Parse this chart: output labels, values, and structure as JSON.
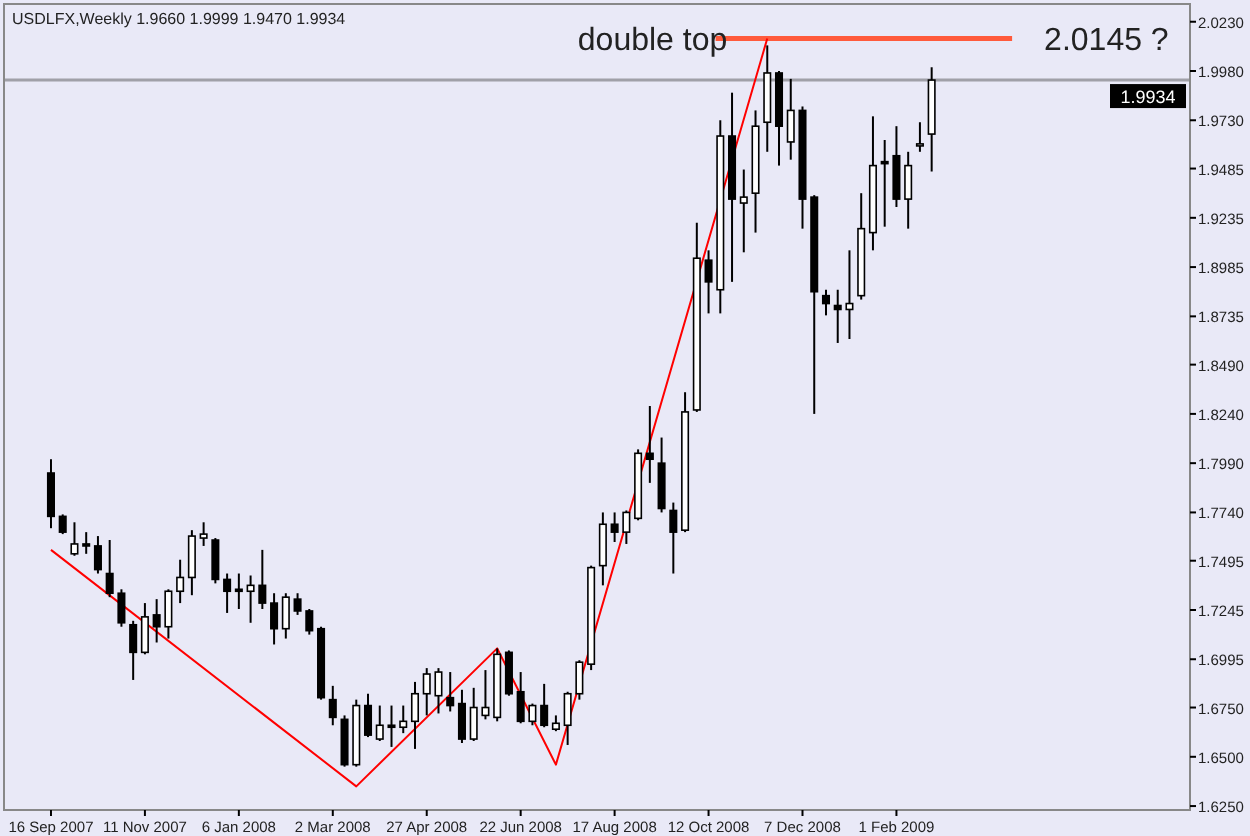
{
  "chart_data": {
    "type": "candlestick",
    "title": "USDLFX,Weekly 1.9660 1.9999 1.9470 1.9934",
    "x": [
      "2007-09-16",
      "2007-09-23",
      "2007-09-30",
      "2007-10-07",
      "2007-10-14",
      "2007-10-21",
      "2007-10-28",
      "2007-11-04",
      "2007-11-11",
      "2007-11-18",
      "2007-11-25",
      "2007-12-02",
      "2007-12-09",
      "2007-12-16",
      "2007-12-23",
      "2007-12-30",
      "2008-01-06",
      "2008-01-13",
      "2008-01-20",
      "2008-01-27",
      "2008-02-03",
      "2008-02-10",
      "2008-02-17",
      "2008-02-24",
      "2008-03-02",
      "2008-03-09",
      "2008-03-16",
      "2008-03-23",
      "2008-03-30",
      "2008-04-06",
      "2008-04-13",
      "2008-04-20",
      "2008-04-27",
      "2008-05-04",
      "2008-05-11",
      "2008-05-18",
      "2008-05-25",
      "2008-06-01",
      "2008-06-08",
      "2008-06-15",
      "2008-06-22",
      "2008-06-29",
      "2008-07-06",
      "2008-07-13",
      "2008-07-20",
      "2008-07-27",
      "2008-08-03",
      "2008-08-10",
      "2008-08-17",
      "2008-08-24",
      "2008-08-31",
      "2008-09-07",
      "2008-09-14",
      "2008-09-21",
      "2008-09-28",
      "2008-10-05",
      "2008-10-12",
      "2008-10-19",
      "2008-10-26",
      "2008-11-02",
      "2008-11-09",
      "2008-11-16",
      "2008-11-23",
      "2008-11-30",
      "2008-12-07",
      "2008-12-14",
      "2008-12-21",
      "2008-12-28",
      "2009-01-04",
      "2009-01-11",
      "2009-01-18",
      "2009-01-25",
      "2009-02-01",
      "2009-02-08",
      "2009-02-15",
      "2009-02-22"
    ],
    "ohlc": [
      [
        1.794,
        1.801,
        1.766,
        1.772
      ],
      [
        1.772,
        1.773,
        1.763,
        1.764
      ],
      [
        1.753,
        1.769,
        1.752,
        1.758
      ],
      [
        1.758,
        1.764,
        1.753,
        1.757
      ],
      [
        1.757,
        1.762,
        1.743,
        1.745
      ],
      [
        1.743,
        1.76,
        1.731,
        1.733
      ],
      [
        1.733,
        1.735,
        1.716,
        1.718
      ],
      [
        1.717,
        1.719,
        1.689,
        1.703
      ],
      [
        1.703,
        1.728,
        1.702,
        1.721
      ],
      [
        1.722,
        1.73,
        1.708,
        1.716
      ],
      [
        1.716,
        1.735,
        1.71,
        1.734
      ],
      [
        1.734,
        1.75,
        1.728,
        1.741
      ],
      [
        1.741,
        1.765,
        1.732,
        1.762
      ],
      [
        1.761,
        1.769,
        1.757,
        1.763
      ],
      [
        1.76,
        1.761,
        1.738,
        1.74
      ],
      [
        1.74,
        1.743,
        1.723,
        1.734
      ],
      [
        1.735,
        1.743,
        1.725,
        1.734
      ],
      [
        1.734,
        1.742,
        1.718,
        1.737
      ],
      [
        1.737,
        1.755,
        1.725,
        1.728
      ],
      [
        1.728,
        1.733,
        1.707,
        1.715
      ],
      [
        1.715,
        1.733,
        1.71,
        1.731
      ],
      [
        1.73,
        1.733,
        1.722,
        1.724
      ],
      [
        1.724,
        1.725,
        1.712,
        1.714
      ],
      [
        1.715,
        1.716,
        1.679,
        1.68
      ],
      [
        1.679,
        1.686,
        1.666,
        1.67
      ],
      [
        1.669,
        1.671,
        1.645,
        1.646
      ],
      [
        1.646,
        1.679,
        1.645,
        1.676
      ],
      [
        1.676,
        1.682,
        1.66,
        1.661
      ],
      [
        1.659,
        1.676,
        1.658,
        1.666
      ],
      [
        1.666,
        1.676,
        1.655,
        1.665
      ],
      [
        1.665,
        1.676,
        1.662,
        1.668
      ],
      [
        1.668,
        1.688,
        1.654,
        1.682
      ],
      [
        1.682,
        1.695,
        1.671,
        1.692
      ],
      [
        1.681,
        1.695,
        1.672,
        1.693
      ],
      [
        1.68,
        1.693,
        1.673,
        1.676
      ],
      [
        1.677,
        1.684,
        1.657,
        1.659
      ],
      [
        1.659,
        1.685,
        1.658,
        1.675
      ],
      [
        1.671,
        1.694,
        1.669,
        1.675
      ],
      [
        1.67,
        1.705,
        1.668,
        1.702
      ],
      [
        1.703,
        1.704,
        1.681,
        1.682
      ],
      [
        1.683,
        1.693,
        1.667,
        1.668
      ],
      [
        1.668,
        1.677,
        1.666,
        1.676
      ],
      [
        1.676,
        1.687,
        1.665,
        1.666
      ],
      [
        1.664,
        1.671,
        1.663,
        1.667
      ],
      [
        1.666,
        1.683,
        1.656,
        1.682
      ],
      [
        1.682,
        1.699,
        1.679,
        1.698
      ],
      [
        1.697,
        1.747,
        1.694,
        1.746
      ],
      [
        1.747,
        1.774,
        1.737,
        1.768
      ],
      [
        1.768,
        1.774,
        1.759,
        1.764
      ],
      [
        1.764,
        1.775,
        1.758,
        1.774
      ],
      [
        1.771,
        1.806,
        1.77,
        1.804
      ],
      [
        1.804,
        1.828,
        1.789,
        1.801
      ],
      [
        1.799,
        1.812,
        1.774,
        1.776
      ],
      [
        1.775,
        1.779,
        1.743,
        1.764
      ],
      [
        1.765,
        1.835,
        1.764,
        1.825
      ],
      [
        1.826,
        1.921,
        1.825,
        1.903
      ],
      [
        1.902,
        1.907,
        1.875,
        1.891
      ],
      [
        1.887,
        1.973,
        1.875,
        1.965
      ],
      [
        1.965,
        1.987,
        1.891,
        1.933
      ],
      [
        1.931,
        1.948,
        1.906,
        1.934
      ],
      [
        1.936,
        1.978,
        1.916,
        1.97
      ],
      [
        1.972,
        2.011,
        1.957,
        1.997
      ],
      [
        1.997,
        1.998,
        1.95,
        1.97
      ],
      [
        1.962,
        1.994,
        1.953,
        1.978
      ],
      [
        1.978,
        1.98,
        1.918,
        1.933
      ],
      [
        1.934,
        1.935,
        1.824,
        1.886
      ],
      [
        1.884,
        1.887,
        1.874,
        1.88
      ],
      [
        1.879,
        1.887,
        1.86,
        1.877
      ],
      [
        1.877,
        1.907,
        1.862,
        1.88
      ],
      [
        1.884,
        1.936,
        1.882,
        1.918
      ],
      [
        1.916,
        1.975,
        1.907,
        1.95
      ],
      [
        1.952,
        1.963,
        1.919,
        1.951
      ],
      [
        1.955,
        1.97,
        1.929,
        1.933
      ],
      [
        1.933,
        1.957,
        1.918,
        1.95
      ],
      [
        1.961,
        1.972,
        1.957,
        1.961
      ],
      [
        1.966,
        1.9999,
        1.947,
        1.9934
      ]
    ],
    "series": [
      {
        "type": "line",
        "color": "#ff0000",
        "x": [
          "2007-09-16",
          "2008-03-16",
          "2008-06-08",
          "2008-07-13",
          "2008-11-16"
        ],
        "values": [
          1.755,
          1.635,
          1.705,
          1.646,
          2.0145
        ]
      }
    ],
    "xlim": [
      "2007-08-19",
      "2009-07-26"
    ],
    "xticks": [
      {
        "value": "2007-09-16",
        "label": "16 Sep 2007"
      },
      {
        "value": "2007-11-11",
        "label": "11 Nov 2007"
      },
      {
        "value": "2008-01-06",
        "label": "6 Jan 2008"
      },
      {
        "value": "2008-03-02",
        "label": "2 Mar 2008"
      },
      {
        "value": "2008-04-27",
        "label": "27 Apr 2008"
      },
      {
        "value": "2008-06-22",
        "label": "22 Jun 2008"
      },
      {
        "value": "2008-08-17",
        "label": "17 Aug 2008"
      },
      {
        "value": "2008-10-12",
        "label": "12 Oct 2008"
      },
      {
        "value": "2008-12-07",
        "label": "7 Dec 2008"
      },
      {
        "value": "2009-02-01",
        "label": "1 Feb 2009"
      }
    ],
    "ylim": [
      1.623,
      2.032
    ],
    "yticks": [
      {
        "value": 2.023,
        "label": "2.0230"
      },
      {
        "value": 1.998,
        "label": "1.9980"
      },
      {
        "value": 1.973,
        "label": "1.9730"
      },
      1.9485,
      1.9235,
      1.8985,
      1.8735,
      {
        "value": 1.849,
        "label": "1.8490"
      },
      {
        "value": 1.824,
        "label": "1.8240"
      },
      {
        "value": 1.799,
        "label": "1.7990"
      },
      {
        "value": 1.774,
        "label": "1.7740"
      },
      1.7495,
      1.7245,
      1.6995,
      {
        "value": 1.675,
        "label": "1.6750"
      },
      {
        "value": 1.65,
        "label": "1.6500"
      },
      {
        "value": 1.625,
        "label": "1.6250"
      }
    ],
    "ref_lines": [
      {
        "axis": "y",
        "value": 1.9934,
        "label": "1.9934",
        "color": "#a0a0a8"
      },
      {
        "axis": "y",
        "value": 2.0145,
        "label": "2.0145 ?",
        "color": "#ff5a3c"
      }
    ],
    "annotations": [
      {
        "text": "double top",
        "x": "2008-11-16",
        "y": 2.0145
      }
    ]
  }
}
